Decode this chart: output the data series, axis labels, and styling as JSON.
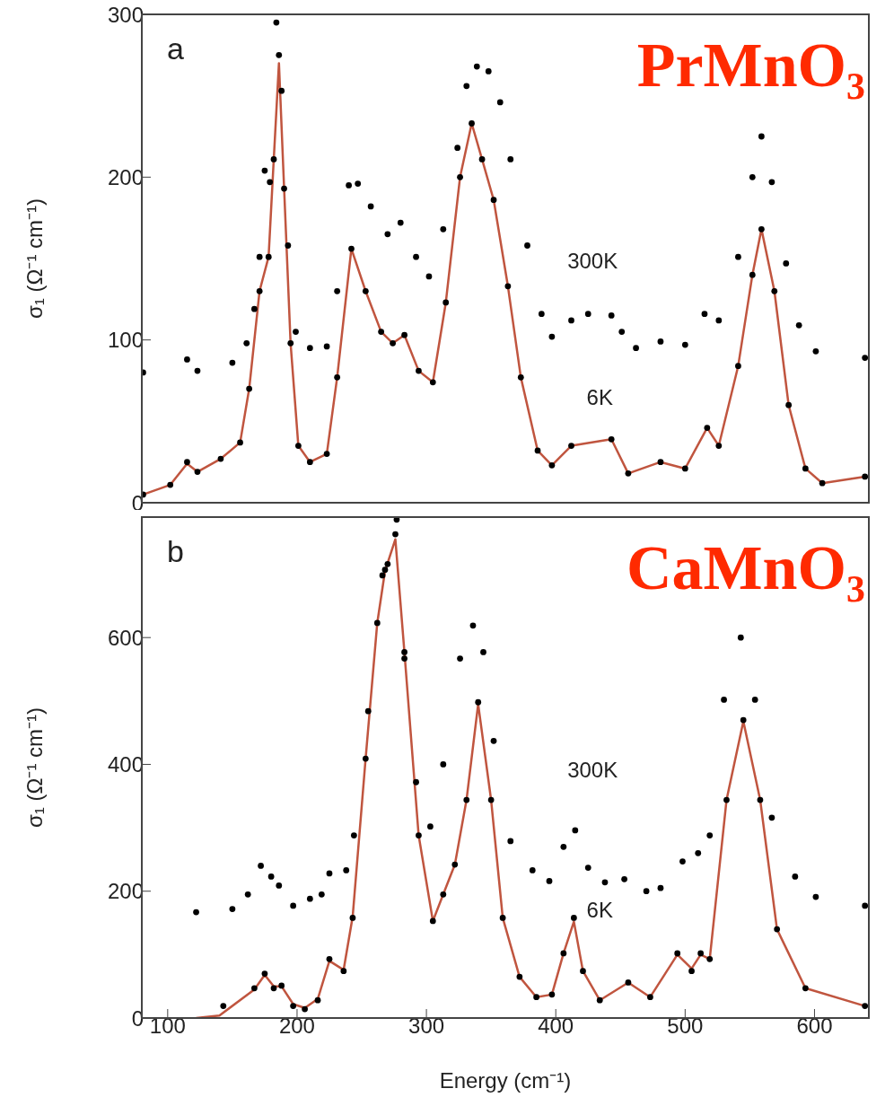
{
  "chart_data": [
    {
      "type": "scatter",
      "ylabel": "σ₁ (Ω⁻¹ cm⁻¹)",
      "xlim": [
        80,
        642
      ],
      "xticks": [
        100,
        200,
        300,
        400,
        500,
        600
      ],
      "ylim": [
        0,
        300
      ],
      "yticks": [
        0,
        100,
        200,
        300
      ],
      "tick_labels": "y",
      "marker": "circle",
      "annotations": [
        "a",
        "PrMnO₃",
        "300K",
        "6K"
      ],
      "series": [
        {
          "color": "#000000",
          "x": [
            81,
            115,
            123,
            150,
            161,
            167,
            171,
            175,
            179,
            184,
            188,
            193,
            199,
            210,
            223,
            231,
            240,
            247,
            257,
            270,
            280,
            292,
            302,
            313,
            324,
            331,
            339,
            348,
            357,
            365,
            378,
            389,
            397,
            412,
            425,
            443,
            451,
            462,
            481,
            500,
            515,
            526,
            541,
            552,
            559,
            567,
            578,
            588,
            601,
            639
          ],
          "values": [
            80,
            88,
            81,
            86,
            98,
            119,
            151,
            204,
            197,
            295,
            253,
            158,
            105,
            95,
            96,
            130,
            195,
            196,
            182,
            165,
            172,
            151,
            139,
            168,
            218,
            256,
            268,
            265,
            246,
            211,
            158,
            116,
            102,
            112,
            116,
            115,
            105,
            95,
            99,
            97,
            116,
            112,
            151,
            200,
            225,
            197,
            147,
            109,
            93,
            89
          ]
        },
        {
          "color": "#000000",
          "x": [
            81,
            102,
            115,
            123,
            141,
            156,
            163,
            171,
            178,
            182,
            186,
            190,
            195,
            201,
            210,
            223,
            231,
            242,
            253,
            265,
            274,
            283,
            294,
            305,
            315,
            326,
            335,
            343,
            352,
            363,
            373,
            386,
            397,
            412,
            443,
            456,
            481,
            500,
            517,
            526,
            541,
            552,
            559,
            569,
            580,
            593,
            606,
            639
          ],
          "values": [
            5,
            11,
            25,
            19,
            27,
            37,
            70,
            130,
            151,
            211,
            275,
            193,
            98,
            35,
            25,
            30,
            77,
            156,
            130,
            105,
            98,
            103,
            81,
            74,
            123,
            200,
            233,
            211,
            186,
            133,
            77,
            32,
            23,
            35,
            39,
            18,
            25,
            21,
            46,
            35,
            84,
            140,
            168,
            130,
            60,
            21,
            12,
            16
          ]
        },
        {
          "type": "line",
          "marker": "none",
          "color": "#c0553f",
          "x": [
            81,
            102,
            115,
            123,
            141,
            156,
            163,
            171,
            178,
            182,
            186,
            190,
            195,
            201,
            210,
            223,
            231,
            242,
            253,
            265,
            274,
            283,
            294,
            305,
            315,
            326,
            335,
            343,
            352,
            363,
            373,
            386,
            397,
            412,
            443,
            456,
            481,
            500,
            517,
            526,
            541,
            552,
            559,
            569,
            580,
            593,
            606,
            639
          ],
          "values": [
            5,
            11,
            24,
            19,
            27,
            37,
            70,
            130,
            151,
            211,
            270,
            193,
            98,
            35,
            25,
            30,
            77,
            156,
            130,
            105,
            98,
            103,
            81,
            74,
            123,
            200,
            233,
            211,
            186,
            133,
            77,
            32,
            23,
            35,
            39,
            18,
            25,
            21,
            46,
            35,
            84,
            140,
            168,
            130,
            60,
            21,
            12,
            16
          ]
        }
      ]
    },
    {
      "type": "scatter",
      "xlabel": "Energy (cm⁻¹)",
      "ylabel": "σ₁ (Ω⁻¹ cm⁻¹)",
      "xlim": [
        80,
        642
      ],
      "xticks": [
        100,
        200,
        300,
        400,
        500,
        600
      ],
      "ylim": [
        0,
        790
      ],
      "yticks": [
        0,
        200,
        400,
        600
      ],
      "marker": "circle",
      "annotations": [
        "b",
        "CaMnO₃",
        "300K",
        "6K"
      ],
      "series": [
        {
          "color": "#000000",
          "x": [
            122,
            150,
            162,
            172,
            180,
            186,
            197,
            210,
            219,
            225,
            238,
            244,
            255,
            266,
            270,
            277,
            283,
            292,
            303,
            313,
            326,
            336,
            344,
            352,
            365,
            382,
            395,
            406,
            415,
            425,
            438,
            453,
            470,
            481,
            498,
            510,
            519,
            530,
            543,
            554,
            567,
            585,
            601,
            639
          ],
          "values": [
            167,
            172,
            195,
            240,
            223,
            209,
            177,
            188,
            195,
            228,
            233,
            288,
            484,
            698,
            716,
            786,
            567,
            372,
            302,
            400,
            567,
            619,
            577,
            437,
            279,
            233,
            216,
            270,
            296,
            237,
            214,
            219,
            200,
            205,
            247,
            260,
            288,
            502,
            600,
            502,
            316,
            223,
            191,
            177
          ]
        },
        {
          "color": "#000000",
          "x": [
            143,
            167,
            175,
            182,
            188,
            197,
            206,
            216,
            225,
            236,
            243,
            253,
            262,
            268,
            276,
            283,
            294,
            305,
            313,
            322,
            331,
            340,
            350,
            359,
            372,
            385,
            397,
            406,
            414,
            421,
            434,
            456,
            473,
            494,
            505,
            512,
            519,
            532,
            545,
            558,
            571,
            593,
            639
          ],
          "values": [
            19,
            47,
            70,
            47,
            51,
            19,
            14,
            28,
            93,
            74,
            158,
            409,
            623,
            707,
            763,
            577,
            288,
            153,
            195,
            242,
            344,
            498,
            344,
            158,
            65,
            33,
            37,
            102,
            158,
            74,
            28,
            56,
            33,
            102,
            74,
            102,
            93,
            344,
            470,
            344,
            140,
            47,
            19
          ]
        },
        {
          "type": "line",
          "marker": "none",
          "color": "#c0553f",
          "x": [
            122,
            140,
            167,
            175,
            182,
            188,
            197,
            206,
            216,
            225,
            236,
            243,
            253,
            262,
            268,
            276,
            283,
            294,
            305,
            313,
            322,
            331,
            340,
            350,
            359,
            372,
            385,
            397,
            406,
            414,
            421,
            434,
            456,
            473,
            494,
            505,
            512,
            519,
            532,
            545,
            558,
            571,
            593,
            639
          ],
          "values": [
            0,
            4,
            45,
            68,
            50,
            50,
            22,
            16,
            30,
            90,
            76,
            160,
            409,
            623,
            705,
            755,
            577,
            288,
            153,
            195,
            242,
            344,
            495,
            344,
            158,
            65,
            33,
            37,
            102,
            152,
            74,
            28,
            56,
            33,
            100,
            78,
            100,
            93,
            344,
            468,
            344,
            140,
            47,
            19
          ]
        }
      ]
    }
  ]
}
